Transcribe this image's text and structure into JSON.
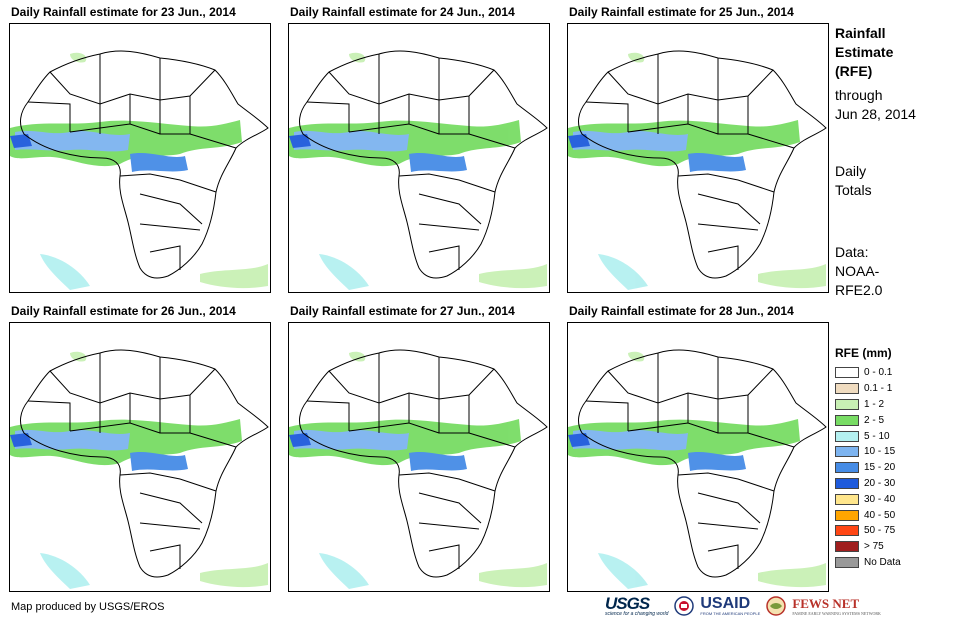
{
  "panels": [
    {
      "title": "Daily Rainfall estimate for 23 Jun., 2014"
    },
    {
      "title": "Daily Rainfall estimate for 24 Jun., 2014"
    },
    {
      "title": "Daily Rainfall estimate for 25 Jun., 2014"
    },
    {
      "title": "Daily Rainfall estimate for 26 Jun., 2014"
    },
    {
      "title": "Daily Rainfall estimate for 27 Jun., 2014"
    },
    {
      "title": "Daily Rainfall estimate for 28 Jun., 2014"
    }
  ],
  "sidebar": {
    "title_line1": "Rainfall",
    "title_line2": "Estimate",
    "title_line3": "(RFE)",
    "through_label": "through",
    "through_date": "Jun 28, 2014",
    "totals_line1": "Daily",
    "totals_line2": "Totals",
    "data_line1": "Data:",
    "data_line2": "NOAA-",
    "data_line3": "RFE2.0"
  },
  "legend": {
    "title": "RFE (mm)",
    "items": [
      {
        "label": "0 - 0.1",
        "color": "#ffffff"
      },
      {
        "label": "0.1 - 1",
        "color": "#f0dcc0"
      },
      {
        "label": "1 - 2",
        "color": "#c8f0b4"
      },
      {
        "label": "2 - 5",
        "color": "#78dc64"
      },
      {
        "label": "5 - 10",
        "color": "#b4f0f0"
      },
      {
        "label": "10 - 15",
        "color": "#7db4f0"
      },
      {
        "label": "15 - 20",
        "color": "#468ce6"
      },
      {
        "label": "20 - 30",
        "color": "#1e5adc"
      },
      {
        "label": "30 - 40",
        "color": "#ffe68c"
      },
      {
        "label": "40 - 50",
        "color": "#ffa500"
      },
      {
        "label": "50 - 75",
        "color": "#ff4614"
      },
      {
        "label": "> 75",
        "color": "#a01e1e"
      },
      {
        "label": "No Data",
        "color": "#999999"
      }
    ]
  },
  "footer": {
    "credit": "Map produced by USGS/EROS",
    "logo_usgs": "USGS",
    "logo_usgs_tagline": "science for a changing world",
    "logo_usaid": "USAID",
    "logo_usaid_tagline": "FROM THE AMERICAN PEOPLE",
    "logo_fews": "FEWS NET",
    "logo_fews_tagline": "FAMINE EARLY WARNING SYSTEMS NETWORK"
  }
}
